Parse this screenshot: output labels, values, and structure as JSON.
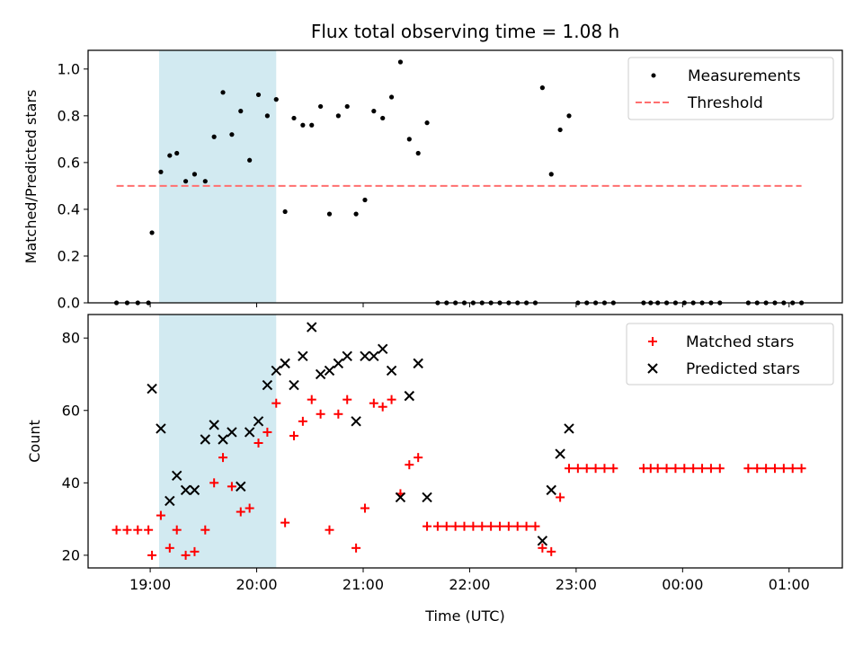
{
  "chart_data": [
    {
      "type": "scatter",
      "title": "Flux total observing time = 1.08 h",
      "xlabel": "",
      "ylabel": "Matched/Predicted stars",
      "xlim": [
        "18:25",
        "01:30"
      ],
      "ylim": [
        0,
        1.08
      ],
      "yticks": [
        "0.0",
        "0.2",
        "0.4",
        "0.6",
        "0.8",
        "1.0"
      ],
      "shaded_span": {
        "from": "19:05",
        "to": "20:11",
        "color": "#add8e6"
      },
      "legend_position": "top-right",
      "series": [
        {
          "name": "Measurements",
          "marker": "dot",
          "color": "#000000",
          "points": [
            [
              "18:41",
              0
            ],
            [
              "18:47",
              0
            ],
            [
              "18:53",
              0
            ],
            [
              "18:59",
              0
            ],
            [
              "19:01",
              0.3
            ],
            [
              "19:06",
              0.56
            ],
            [
              "19:11",
              0.63
            ],
            [
              "19:15",
              0.64
            ],
            [
              "19:20",
              0.52
            ],
            [
              "19:25",
              0.55
            ],
            [
              "19:31",
              0.52
            ],
            [
              "19:36",
              0.71
            ],
            [
              "19:41",
              0.9
            ],
            [
              "19:46",
              0.72
            ],
            [
              "19:51",
              0.82
            ],
            [
              "19:56",
              0.61
            ],
            [
              "20:01",
              0.89
            ],
            [
              "20:06",
              0.8
            ],
            [
              "20:11",
              0.87
            ],
            [
              "20:16",
              0.39
            ],
            [
              "20:21",
              0.79
            ],
            [
              "20:26",
              0.76
            ],
            [
              "20:31",
              0.76
            ],
            [
              "20:36",
              0.84
            ],
            [
              "20:41",
              0.38
            ],
            [
              "20:46",
              0.8
            ],
            [
              "20:51",
              0.84
            ],
            [
              "20:56",
              0.38
            ],
            [
              "21:01",
              0.44
            ],
            [
              "21:06",
              0.82
            ],
            [
              "21:11",
              0.79
            ],
            [
              "21:16",
              0.88
            ],
            [
              "21:21",
              1.03
            ],
            [
              "21:26",
              0.7
            ],
            [
              "21:31",
              0.64
            ],
            [
              "21:36",
              0.77
            ],
            [
              "21:42",
              0
            ],
            [
              "21:47",
              0
            ],
            [
              "21:52",
              0
            ],
            [
              "21:57",
              0
            ],
            [
              "22:02",
              0
            ],
            [
              "22:07",
              0
            ],
            [
              "22:12",
              0
            ],
            [
              "22:17",
              0
            ],
            [
              "22:22",
              0
            ],
            [
              "22:27",
              0
            ],
            [
              "22:32",
              0
            ],
            [
              "22:37",
              0
            ],
            [
              "22:41",
              0.92
            ],
            [
              "22:46",
              0.55
            ],
            [
              "22:51",
              0.74
            ],
            [
              "22:56",
              0.8
            ],
            [
              "23:01",
              0
            ],
            [
              "23:06",
              0
            ],
            [
              "23:11",
              0
            ],
            [
              "23:16",
              0
            ],
            [
              "23:21",
              0
            ],
            [
              "23:38",
              0
            ],
            [
              "23:42",
              0
            ],
            [
              "23:46",
              0
            ],
            [
              "23:51",
              0
            ],
            [
              "23:56",
              0
            ],
            [
              "00:01",
              0
            ],
            [
              "00:06",
              0
            ],
            [
              "00:11",
              0
            ],
            [
              "00:16",
              0
            ],
            [
              "00:21",
              0
            ],
            [
              "00:37",
              0
            ],
            [
              "00:42",
              0
            ],
            [
              "00:47",
              0
            ],
            [
              "00:52",
              0
            ],
            [
              "00:57",
              0
            ],
            [
              "01:02",
              0
            ],
            [
              "01:07",
              0
            ]
          ]
        },
        {
          "name": "Threshold",
          "marker": "dashed-line",
          "color": "#ff6f6f",
          "points": [
            [
              "18:41",
              0.5
            ],
            [
              "01:07",
              0.5
            ]
          ]
        }
      ]
    },
    {
      "type": "scatter",
      "title": "",
      "xlabel": "Time (UTC)",
      "ylabel": "Count",
      "xlim": [
        "18:25",
        "01:30"
      ],
      "ylim": [
        16.5,
        86.5
      ],
      "xticks": [
        "19:00",
        "20:00",
        "21:00",
        "22:00",
        "23:00",
        "00:00",
        "01:00"
      ],
      "yticks": [
        "20",
        "40",
        "60",
        "80"
      ],
      "shaded_span": {
        "from": "19:05",
        "to": "20:11",
        "color": "#add8e6"
      },
      "legend_position": "top-right",
      "series": [
        {
          "name": "Matched stars",
          "marker": "plus",
          "color": "#ff0000",
          "points": [
            [
              "18:41",
              27
            ],
            [
              "18:47",
              27
            ],
            [
              "18:53",
              27
            ],
            [
              "18:59",
              27
            ],
            [
              "19:01",
              20
            ],
            [
              "19:06",
              31
            ],
            [
              "19:11",
              22
            ],
            [
              "19:15",
              27
            ],
            [
              "19:20",
              20
            ],
            [
              "19:25",
              21
            ],
            [
              "19:31",
              27
            ],
            [
              "19:36",
              40
            ],
            [
              "19:41",
              47
            ],
            [
              "19:46",
              39
            ],
            [
              "19:51",
              32
            ],
            [
              "19:56",
              33
            ],
            [
              "20:01",
              51
            ],
            [
              "20:06",
              54
            ],
            [
              "20:11",
              62
            ],
            [
              "20:16",
              29
            ],
            [
              "20:21",
              53
            ],
            [
              "20:26",
              57
            ],
            [
              "20:31",
              63
            ],
            [
              "20:36",
              59
            ],
            [
              "20:41",
              27
            ],
            [
              "20:46",
              59
            ],
            [
              "20:51",
              63
            ],
            [
              "20:56",
              22
            ],
            [
              "21:01",
              33
            ],
            [
              "21:06",
              62
            ],
            [
              "21:11",
              61
            ],
            [
              "21:16",
              63
            ],
            [
              "21:21",
              37
            ],
            [
              "21:26",
              45
            ],
            [
              "21:31",
              47
            ],
            [
              "21:36",
              28
            ],
            [
              "21:42",
              28
            ],
            [
              "21:47",
              28
            ],
            [
              "21:52",
              28
            ],
            [
              "21:57",
              28
            ],
            [
              "22:02",
              28
            ],
            [
              "22:07",
              28
            ],
            [
              "22:12",
              28
            ],
            [
              "22:17",
              28
            ],
            [
              "22:22",
              28
            ],
            [
              "22:27",
              28
            ],
            [
              "22:32",
              28
            ],
            [
              "22:37",
              28
            ],
            [
              "22:41",
              22
            ],
            [
              "22:46",
              21
            ],
            [
              "22:51",
              36
            ],
            [
              "22:56",
              44
            ],
            [
              "23:01",
              44
            ],
            [
              "23:06",
              44
            ],
            [
              "23:11",
              44
            ],
            [
              "23:16",
              44
            ],
            [
              "23:21",
              44
            ],
            [
              "23:38",
              44
            ],
            [
              "23:42",
              44
            ],
            [
              "23:46",
              44
            ],
            [
              "23:51",
              44
            ],
            [
              "23:56",
              44
            ],
            [
              "00:01",
              44
            ],
            [
              "00:06",
              44
            ],
            [
              "00:11",
              44
            ],
            [
              "00:16",
              44
            ],
            [
              "00:21",
              44
            ],
            [
              "00:37",
              44
            ],
            [
              "00:42",
              44
            ],
            [
              "00:47",
              44
            ],
            [
              "00:52",
              44
            ],
            [
              "00:57",
              44
            ],
            [
              "01:02",
              44
            ],
            [
              "01:07",
              44
            ]
          ]
        },
        {
          "name": "Predicted stars",
          "marker": "x",
          "color": "#000000",
          "points": [
            [
              "19:01",
              66
            ],
            [
              "19:06",
              55
            ],
            [
              "19:11",
              35
            ],
            [
              "19:15",
              42
            ],
            [
              "19:20",
              38
            ],
            [
              "19:25",
              38
            ],
            [
              "19:31",
              52
            ],
            [
              "19:36",
              56
            ],
            [
              "19:41",
              52
            ],
            [
              "19:46",
              54
            ],
            [
              "19:51",
              39
            ],
            [
              "19:56",
              54
            ],
            [
              "20:01",
              57
            ],
            [
              "20:06",
              67
            ],
            [
              "20:11",
              71
            ],
            [
              "20:16",
              73
            ],
            [
              "20:21",
              67
            ],
            [
              "20:26",
              75
            ],
            [
              "20:31",
              83
            ],
            [
              "20:36",
              70
            ],
            [
              "20:41",
              71
            ],
            [
              "20:46",
              73
            ],
            [
              "20:51",
              75
            ],
            [
              "20:56",
              57
            ],
            [
              "21:01",
              75
            ],
            [
              "21:06",
              75
            ],
            [
              "21:11",
              77
            ],
            [
              "21:16",
              71
            ],
            [
              "21:21",
              36
            ],
            [
              "21:26",
              64
            ],
            [
              "21:31",
              73
            ],
            [
              "21:36",
              36
            ],
            [
              "22:41",
              24
            ],
            [
              "22:46",
              38
            ],
            [
              "22:51",
              48
            ],
            [
              "22:56",
              55
            ]
          ]
        }
      ]
    }
  ]
}
